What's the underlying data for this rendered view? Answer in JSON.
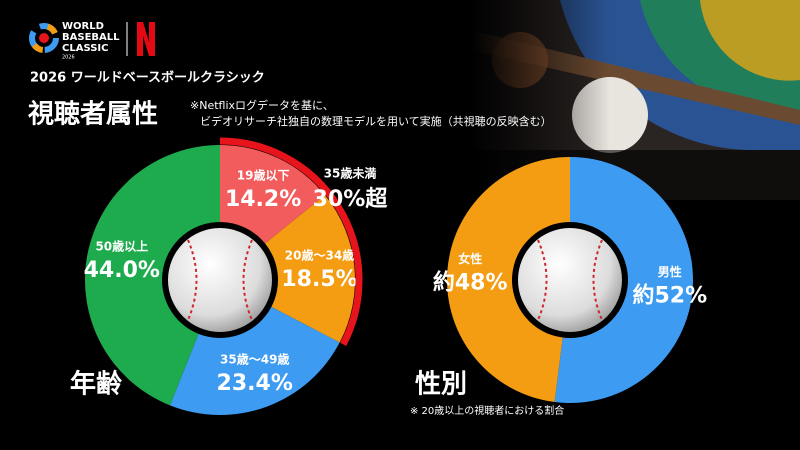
{
  "header": {
    "logo_lines": [
      "WORLD",
      "BASEBALL",
      "CLASSIC"
    ],
    "logo_year": "2026",
    "subtitle": "2026 ワールドベースボールクラシック",
    "title": "視聴者属性",
    "note_lines": [
      "※Netflixログデータを基に、",
      "ビデオリサーチ社独自の数理モデルを用いて実施（共視聴の反映含む）"
    ]
  },
  "chart_data": [
    {
      "type": "donut",
      "title": "年齢",
      "categories": [
        "19歳以下",
        "20歳～34歳",
        "35歳～49歳",
        "50歳以上"
      ],
      "values": [
        14.2,
        18.5,
        23.4,
        44.0
      ],
      "value_labels": [
        "14.2%",
        "18.5%",
        "23.4%",
        "44.0%"
      ],
      "colors": [
        "#f25c5c",
        "#f59d12",
        "#3d9cf2",
        "#1eab4e"
      ],
      "annotation": {
        "label": "35歳未満",
        "text": "30%超",
        "color": "#e8141c"
      }
    },
    {
      "type": "donut",
      "title": "性別",
      "categories": [
        "男性",
        "女性"
      ],
      "values": [
        52,
        48
      ],
      "value_labels": [
        "約52%",
        "約48%"
      ],
      "colors": [
        "#3d9cf2",
        "#f59d12"
      ],
      "footnote": "※ 20歳以上の視聴者における割合"
    }
  ]
}
